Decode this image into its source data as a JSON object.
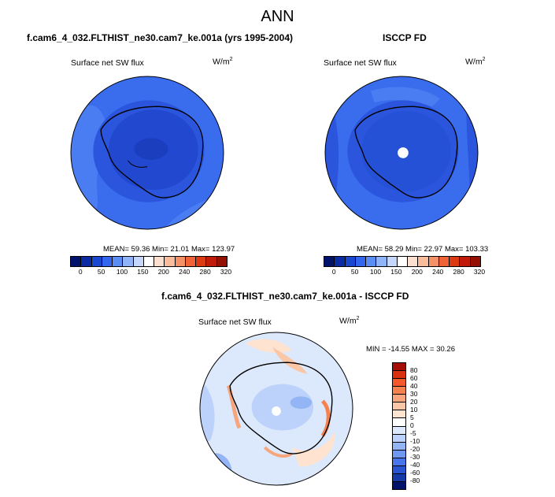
{
  "title": "ANN",
  "panels": [
    {
      "title": "f.cam6_4_032.FLTHIST_ne30.cam7_ke.001a (yrs 1995-2004)",
      "variable": "Surface net SW flux",
      "units": "W/m",
      "units_exp": "2",
      "stats": "MEAN= 59.36  Min= 21.01  Max= 123.97"
    },
    {
      "title": "ISCCP FD",
      "variable": "Surface net SW flux",
      "units": "W/m",
      "units_exp": "2",
      "stats": "MEAN= 58.29  Min= 22.97  Max= 103.33"
    },
    {
      "title": "f.cam6_4_032.FLTHIST_ne30.cam7_ke.001a - ISCCP FD",
      "variable": "Surface net SW flux",
      "units": "W/m",
      "units_exp": "2",
      "stats": "MIN = -14.55  MAX =  30.26"
    }
  ],
  "colorbar_main": {
    "labels": [
      "0",
      "50",
      "100",
      "150",
      "200",
      "240",
      "280",
      "320"
    ],
    "colors": [
      "#00126a",
      "#0b2ba3",
      "#1947d0",
      "#3366ee",
      "#5b8ef4",
      "#8fb5f8",
      "#c5d8fb",
      "#ffffff",
      "#fbe0cf",
      "#f9bd9c",
      "#f59167",
      "#ef6337",
      "#dd3a13",
      "#c01b08",
      "#941003"
    ]
  },
  "colorbar_diff": {
    "labels": [
      "80",
      "60",
      "40",
      "30",
      "20",
      "10",
      "5",
      "0",
      "-5",
      "-10",
      "-20",
      "-30",
      "-40",
      "-60",
      "-80"
    ],
    "colors": [
      "#a30e06",
      "#d9300f",
      "#f2582a",
      "#f5814f",
      "#f7a57c",
      "#fac6a6",
      "#fde3d0",
      "#ffffff",
      "#dce8fc",
      "#bcd2fa",
      "#93b5f6",
      "#6f98f2",
      "#4876ea",
      "#2a53d2",
      "#153aa8",
      "#00126a"
    ]
  },
  "chart_data": [
    {
      "type": "map",
      "title": "f.cam6_4_032.FLTHIST_ne30.cam7_ke.001a (yrs 1995-2004)",
      "variable": "Surface net SW flux",
      "units": "W/m2",
      "mean": 59.36,
      "min": 21.01,
      "max": 123.97
    },
    {
      "type": "map",
      "title": "ISCCP FD",
      "variable": "Surface net SW flux",
      "units": "W/m2",
      "mean": 58.29,
      "min": 22.97,
      "max": 103.33
    },
    {
      "type": "map",
      "title": "f.cam6_4_032.FLTHIST_ne30.cam7_ke.001a - ISCCP FD",
      "variable": "Surface net SW flux",
      "units": "W/m2",
      "min": -14.55,
      "max": 30.26
    }
  ]
}
